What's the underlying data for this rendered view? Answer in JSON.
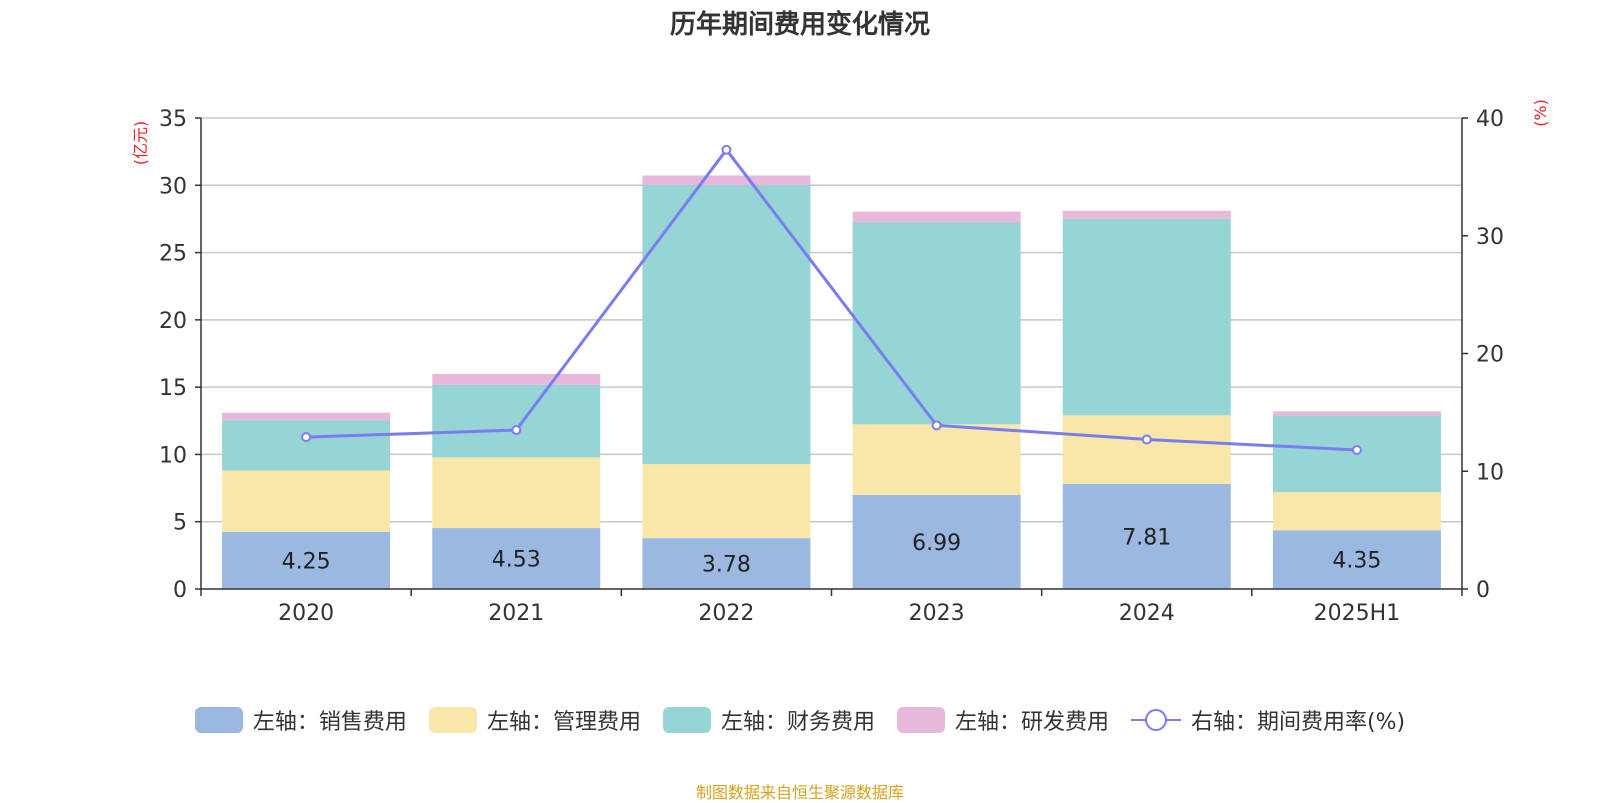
{
  "title": "历年期间费用变化情况",
  "footer": "制图数据来自恒生聚源数据库",
  "chart_data": {
    "type": "bar",
    "stacked": true,
    "categories": [
      "2020",
      "2021",
      "2022",
      "2023",
      "2024",
      "2025H1"
    ],
    "left_axis": {
      "unit": "(亿元)",
      "ylim": [
        0,
        35
      ],
      "ticks": [
        "0",
        "5",
        "10",
        "15",
        "20",
        "25",
        "30",
        "35"
      ]
    },
    "right_axis": {
      "unit": "(%)",
      "ylim": [
        0,
        40
      ],
      "ticks": [
        "0",
        "10",
        "20",
        "30",
        "40"
      ]
    },
    "grid": true,
    "legend_position": "bottom",
    "series": [
      {
        "name": "左轴：销售费用",
        "color": "#9bb8e1",
        "values": [
          4.25,
          4.53,
          3.78,
          6.99,
          7.81,
          4.35
        ],
        "labels": [
          "4.25",
          "4.53",
          "3.78",
          "6.99",
          "7.81",
          "4.35"
        ]
      },
      {
        "name": "左轴：管理费用",
        "color": "#f8e7a9",
        "values": [
          4.55,
          5.25,
          5.5,
          5.25,
          5.1,
          2.85
        ]
      },
      {
        "name": "左轴：财务费用",
        "color": "#97d4d5",
        "values": [
          3.75,
          5.4,
          20.75,
          15.0,
          14.6,
          5.7
        ]
      },
      {
        "name": "左轴：研发费用",
        "color": "#e6b8da",
        "values": [
          0.55,
          0.8,
          0.7,
          0.8,
          0.6,
          0.3
        ]
      }
    ],
    "line_series": {
      "name": "右轴：期间费用率(%)",
      "color": "#7b7def",
      "axis": "right",
      "values": [
        12.9,
        13.5,
        37.3,
        13.9,
        12.7,
        11.8
      ]
    }
  }
}
